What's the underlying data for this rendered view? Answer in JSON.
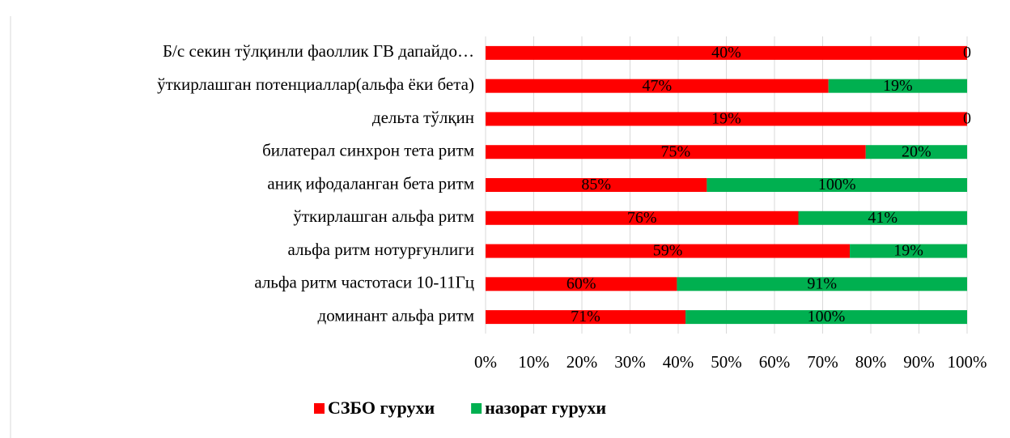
{
  "chart_data": {
    "type": "bar",
    "orientation": "horizontal",
    "stacked": "percent",
    "categories": [
      "Б/с секин тўлқинли фаоллик ГВ дапайдо…",
      "ўткирлашган потенциаллар(альфа ёки бета)",
      "дельта тўлқин",
      "билатерал синхрон тета ритм",
      "аниқ ифодаланган бета ритм",
      "ўткирлашган альфа ритм",
      "альфа ритм нотурғунлиги",
      "альфа ритм частотаси 10-11Гц",
      "доминант альфа ритм"
    ],
    "series": [
      {
        "name": "СЗБО гурухи",
        "color": "#ff0000",
        "values": [
          40,
          47,
          19,
          75,
          85,
          76,
          59,
          60,
          71
        ],
        "value_labels": [
          "40%",
          "47%",
          "19%",
          "75%",
          "85%",
          "76%",
          "59%",
          "60%",
          "71%"
        ]
      },
      {
        "name": "назорат гурухи",
        "color": "#00b050",
        "values": [
          0,
          19,
          0,
          20,
          100,
          41,
          19,
          91,
          100
        ],
        "value_labels": [
          "0",
          "19%",
          "0",
          "20%",
          "100%",
          "41%",
          "19%",
          "91%",
          "100%"
        ]
      }
    ],
    "xlim": [
      0,
      100
    ],
    "xticks": [
      {
        "value": 0,
        "label": "0%"
      },
      {
        "value": 10,
        "label": "10%"
      },
      {
        "value": 20,
        "label": "20%"
      },
      {
        "value": 30,
        "label": "30%"
      },
      {
        "value": 40,
        "label": "40%"
      },
      {
        "value": 50,
        "label": "50%"
      },
      {
        "value": 60,
        "label": "60%"
      },
      {
        "value": 70,
        "label": "70%"
      },
      {
        "value": 80,
        "label": "80%"
      },
      {
        "value": 90,
        "label": "90%"
      },
      {
        "value": 100,
        "label": "100%"
      }
    ],
    "grid": true,
    "legend": "bottom"
  }
}
